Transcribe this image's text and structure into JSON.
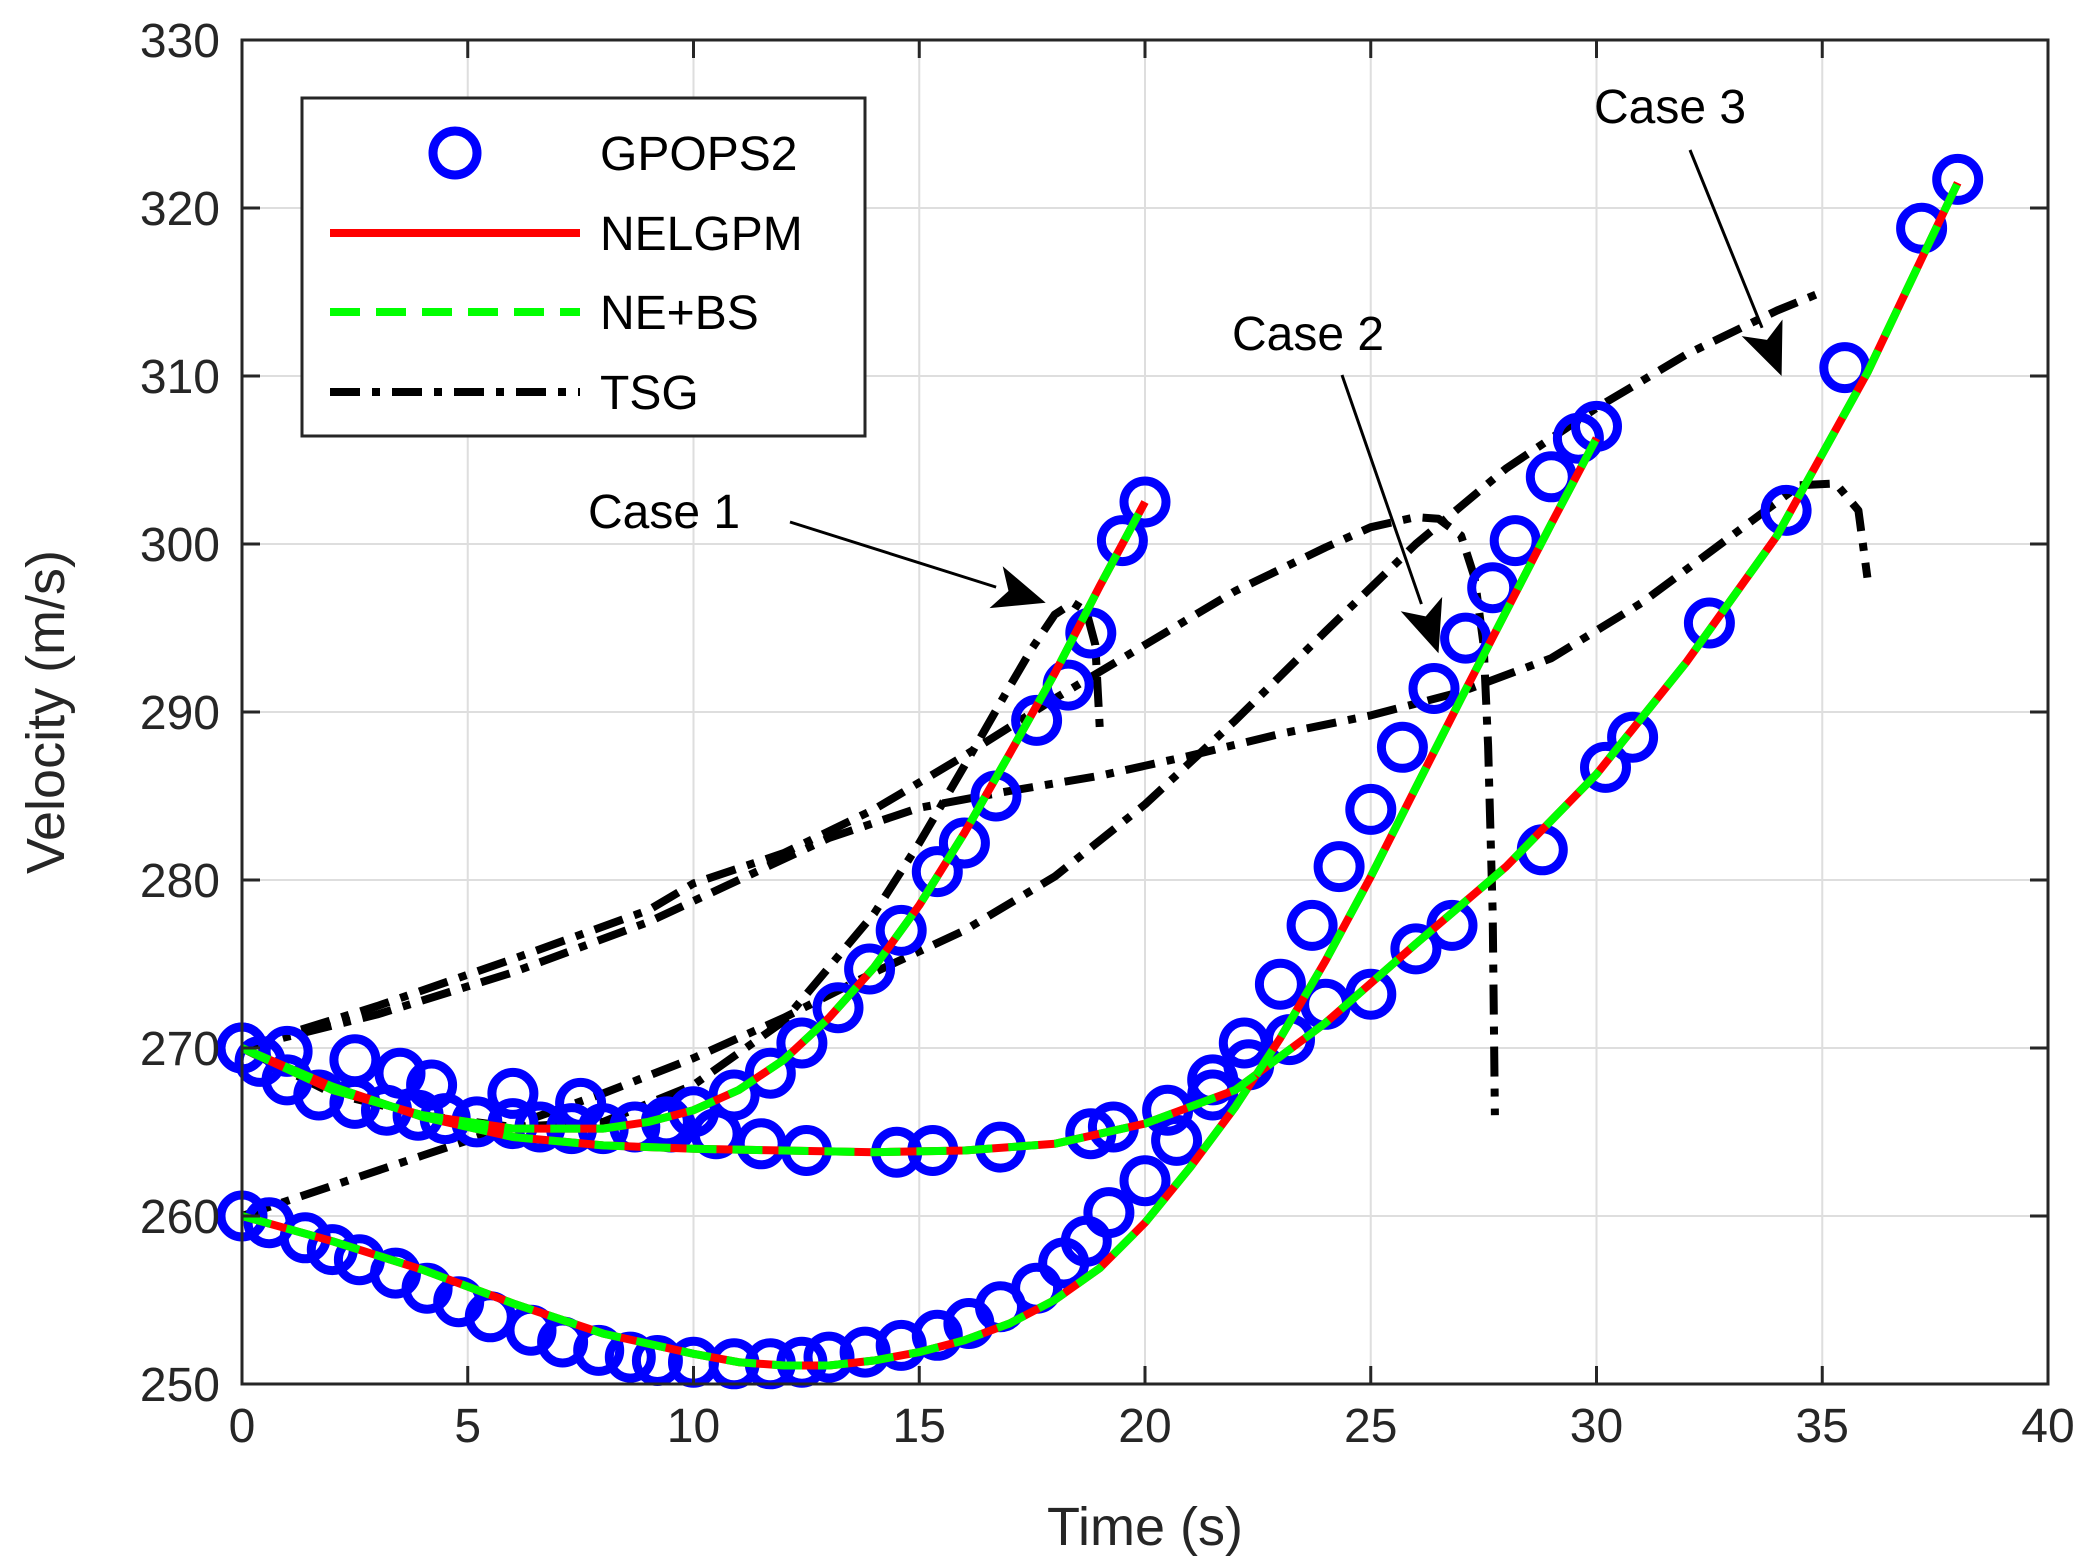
{
  "chart_data": {
    "type": "line",
    "title": "",
    "xlabel": "Time (s)",
    "ylabel": "Velocity (m/s)",
    "xlim": [
      0,
      40
    ],
    "ylim": [
      250,
      330
    ],
    "xticks": [
      "0",
      "5",
      "10",
      "15",
      "20",
      "25",
      "30",
      "35",
      "40"
    ],
    "yticks": [
      "250",
      "260",
      "270",
      "280",
      "290",
      "300",
      "310",
      "320",
      "330"
    ],
    "grid": true,
    "legend_position": "top-left",
    "legend": [
      {
        "name": "GPOPS2",
        "style": "markers",
        "color": "#0000ff"
      },
      {
        "name": "NELGPM",
        "style": "solid",
        "color": "#ff0000"
      },
      {
        "name": "NE+BS",
        "style": "dashed",
        "color": "#00ff00"
      },
      {
        "name": "TSG",
        "style": "dashdot",
        "color": "#000000"
      }
    ],
    "annotations": [
      {
        "text": "Case 1",
        "target": [
          17.8,
          296.5
        ]
      },
      {
        "text": "Case 2",
        "target": [
          26.5,
          293.5
        ]
      },
      {
        "text": "Case 3",
        "target": [
          34.1,
          310
        ]
      }
    ],
    "optimal_curves": [
      {
        "case": "Case 1",
        "start_velocity": 270,
        "x": [
          0,
          2,
          4,
          6,
          8,
          9,
          10,
          11,
          12,
          13,
          14,
          15,
          16,
          17,
          18,
          19,
          20
        ],
        "y": [
          270,
          267.5,
          266,
          265.2,
          265.2,
          265.6,
          266.3,
          267.5,
          269.3,
          271.8,
          274.8,
          278.5,
          282.8,
          287.5,
          292.3,
          297.5,
          302.5
        ]
      },
      {
        "case": "Case 1",
        "start_velocity": 260,
        "x": [
          0,
          2,
          4,
          6,
          8,
          10,
          11,
          12,
          13,
          14,
          15,
          16,
          17,
          18,
          19,
          20,
          21,
          22,
          23,
          24,
          25,
          26,
          27,
          28,
          29,
          30
        ],
        "y": [
          260,
          258.5,
          256.8,
          254.8,
          253,
          251.8,
          251.3,
          251.1,
          251.1,
          251.4,
          251.9,
          252.6,
          253.6,
          255,
          256.9,
          259.6,
          262.9,
          266.5,
          270.6,
          275.2,
          280.2,
          285.5,
          290.8,
          296,
          301.2,
          306.3
        ]
      },
      {
        "case": "Case 2",
        "start_velocity": 270,
        "x": [
          0,
          2,
          4,
          6,
          8,
          10,
          12,
          14,
          16,
          18,
          20,
          22,
          24,
          26,
          28,
          30,
          32,
          34,
          36,
          38
        ],
        "y": [
          270,
          267.7,
          265.9,
          264.7,
          264.2,
          264,
          263.9,
          263.8,
          263.9,
          264.3,
          265.5,
          267.5,
          271.5,
          276.2,
          280.8,
          286.3,
          293,
          300.5,
          310.2,
          321.5
        ]
      }
    ],
    "gpops_markers": [
      {
        "x": [
          0,
          0.4,
          1.0,
          1.7,
          2.5,
          3.2,
          3.9,
          4.5,
          5.2,
          6.0,
          6.6,
          7.3,
          8.0,
          8.7,
          9.4,
          10.0,
          10.9,
          11.7,
          12.4,
          13.2,
          13.9,
          14.6,
          15.4,
          16.0,
          16.7,
          17.6,
          18.3,
          18.8,
          19.5,
          20.0
        ],
        "y": [
          270,
          269.2,
          268.1,
          267.2,
          266.7,
          266.3,
          266.0,
          265.8,
          265.6,
          265.5,
          265.3,
          265.2,
          265.2,
          265.3,
          265.6,
          266.2,
          267.2,
          268.5,
          270.3,
          272.4,
          274.7,
          277.0,
          280.5,
          282.2,
          285.0,
          289.5,
          291.6,
          294.7,
          300.2,
          302.5
        ]
      },
      {
        "x": [
          0,
          0.6,
          1.4,
          2.0,
          2.6,
          3.4,
          4.1,
          4.8,
          5.5,
          6.4,
          7.1,
          7.9,
          8.6,
          9.2,
          10.0,
          10.9,
          11.7,
          12.4,
          13.0,
          13.8,
          14.6,
          15.4,
          16.1,
          16.8,
          17.6,
          18.2,
          18.7,
          19.2,
          20.0,
          20.7,
          21.5,
          22.2,
          23.0,
          23.7,
          24.3,
          25.0,
          25.7,
          26.4,
          27.1,
          27.7,
          28.2,
          29.0,
          29.6,
          30.0
        ],
        "y": [
          260,
          259.6,
          258.7,
          258.0,
          257.4,
          256.6,
          255.7,
          254.9,
          254.0,
          253.2,
          252.5,
          252.0,
          251.6,
          251.4,
          251.3,
          251.2,
          251.2,
          251.3,
          251.6,
          251.9,
          252.3,
          252.9,
          253.6,
          254.6,
          255.7,
          257.2,
          258.5,
          260.2,
          262.1,
          264.5,
          267.2,
          270.3,
          273.8,
          277.3,
          280.8,
          284.2,
          287.9,
          291.4,
          294.4,
          297.4,
          300.2,
          304.0,
          306.3,
          307.0
        ]
      },
      {
        "x": [
          0,
          1.0,
          2.5,
          3.5,
          4.2,
          6.0,
          7.5,
          9.5,
          10.5,
          11.5,
          12.5,
          14.5,
          15.3,
          16.8,
          18.8,
          19.3,
          20.5,
          21.5,
          22.3,
          23.2,
          24.0,
          25.0,
          26.0,
          26.8,
          28.8,
          30.2,
          30.8,
          32.5,
          34.2,
          35.5,
          37.2,
          38.0
        ],
        "y": [
          270,
          269.8,
          269.3,
          268.5,
          267.8,
          267.3,
          266.7,
          265.3,
          264.9,
          264.3,
          263.9,
          263.8,
          263.9,
          264.1,
          264.9,
          265.3,
          266.3,
          268.1,
          269.0,
          270.5,
          272.6,
          273.2,
          275.9,
          277.3,
          281.8,
          286.7,
          288.5,
          295.3,
          302.0,
          310.5,
          318.8,
          321.7
        ]
      }
    ],
    "tsg_curves": [
      {
        "x": [
          0,
          2,
          4,
          6,
          8,
          10,
          12,
          14,
          15,
          16,
          17,
          17.5,
          18,
          18.4,
          18.7,
          18.9,
          19.0
        ],
        "y": [
          270,
          267.3,
          266,
          265.3,
          265.6,
          267.8,
          271.6,
          278,
          282.2,
          286.8,
          291.5,
          293.8,
          295.8,
          296.5,
          296,
          294,
          289
        ]
      },
      {
        "x": [
          0,
          2,
          4,
          6,
          8,
          10,
          12,
          14,
          16,
          18,
          20,
          22,
          24,
          26,
          28,
          30,
          32,
          34,
          35
        ],
        "y": [
          260,
          261.8,
          263.6,
          265.4,
          267.3,
          269.4,
          271.8,
          274.5,
          277,
          280.2,
          284.5,
          289.5,
          294.8,
          300,
          304.5,
          308.1,
          311.3,
          313.9,
          315
        ]
      },
      {
        "x": [
          0,
          3,
          6,
          9,
          11,
          13,
          15,
          17,
          19,
          21,
          23,
          25,
          27,
          29,
          31,
          33,
          34.5,
          35.3,
          35.8,
          36.0
        ],
        "y": [
          270,
          272,
          274.5,
          277.5,
          280,
          282.5,
          284.3,
          285.3,
          286.2,
          287.4,
          288.7,
          289.8,
          291.2,
          293.2,
          296.5,
          300.5,
          303.5,
          303.6,
          302.0,
          298.0
        ]
      },
      {
        "x": [
          0,
          3,
          6,
          9,
          10,
          12,
          14,
          16,
          18,
          20,
          22,
          24,
          25,
          26,
          26.5,
          27,
          27.3,
          27.5,
          27.6,
          27.7,
          27.75
        ],
        "y": [
          270,
          272.5,
          275.3,
          278.2,
          279.8,
          281.6,
          284.2,
          287.4,
          290.8,
          294,
          297.2,
          299.8,
          301,
          301.6,
          301.5,
          300.5,
          298,
          294,
          288,
          278,
          266
        ]
      }
    ]
  }
}
